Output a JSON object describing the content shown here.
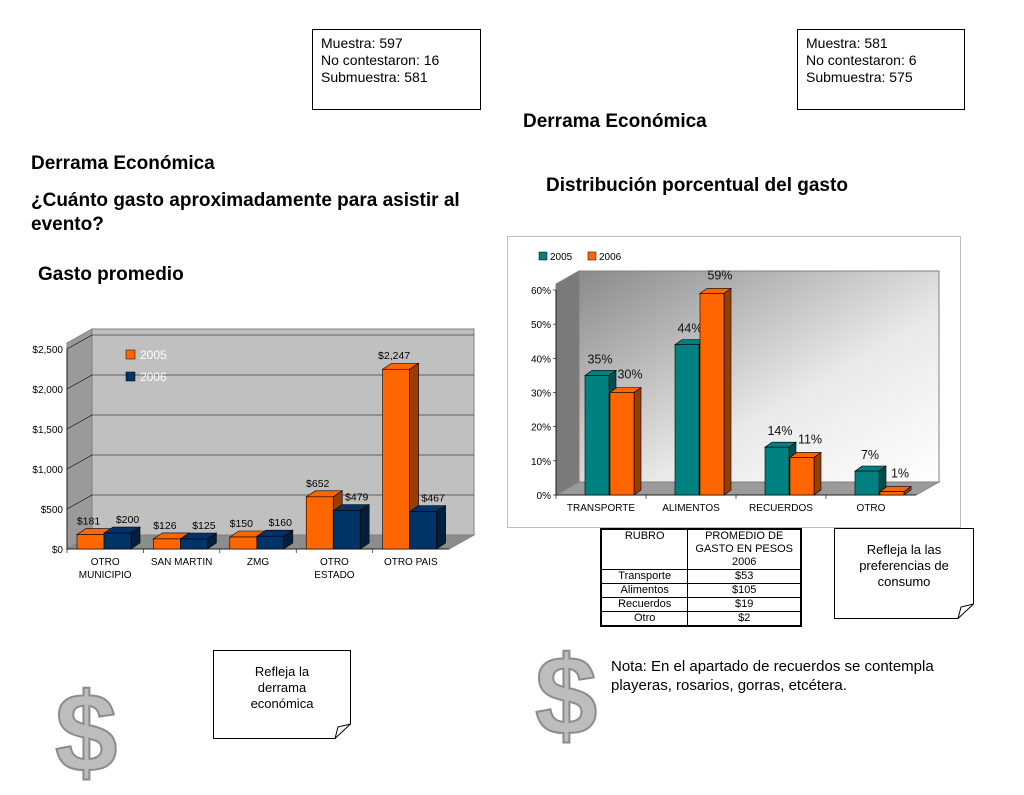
{
  "sample_left": {
    "line1": "Muestra: 597",
    "line2": "No contestaron: 16",
    "line3": "Submuestra: 581"
  },
  "sample_right": {
    "line1": "Muestra: 581",
    "line2": "No contestaron: 6",
    "line3": "Submuestra: 575"
  },
  "left": {
    "title": "Derrama Económica",
    "question": "¿Cuánto gasto aproximadamente para asistir al evento?",
    "subtitle": "Gasto promedio"
  },
  "right": {
    "title": "Derrama Económica",
    "subtitle": "Distribución porcentual del gasto"
  },
  "chart_data": [
    {
      "type": "bar",
      "title": "",
      "categories": [
        "OTRO MUNICIPIO",
        "SAN MARTIN",
        "ZMG",
        "OTRO ESTADO",
        "OTRO PAIS"
      ],
      "category_lines": [
        [
          "OTRO",
          "MUNICIPIO"
        ],
        [
          "SAN MARTIN"
        ],
        [
          "ZMG"
        ],
        [
          "OTRO",
          "ESTADO"
        ],
        [
          "OTRO PAIS"
        ]
      ],
      "series": [
        {
          "name": "2005",
          "values": [
            181,
            126,
            150,
            652,
            2247
          ],
          "labels": [
            "$181",
            "$126",
            "$150",
            "$652",
            "$2,247"
          ],
          "color": "#ff6600"
        },
        {
          "name": "2006",
          "values": [
            200,
            125,
            160,
            479,
            467
          ],
          "labels": [
            "$200",
            "$125",
            "$160",
            "$479",
            "$467"
          ],
          "color": "#003366"
        }
      ],
      "yticks": [
        "$0",
        "$500",
        "$1,000",
        "$1,500",
        "$2,000",
        "$2,500"
      ],
      "ylim": [
        0,
        2500
      ],
      "legend": "top-left",
      "grid": true
    },
    {
      "type": "bar",
      "title": "",
      "categories": [
        "TRANSPORTE",
        "ALIMENTOS",
        "RECUERDOS",
        "OTRO"
      ],
      "series": [
        {
          "name": "2005",
          "values": [
            35,
            44,
            14,
            7
          ],
          "labels": [
            "35%",
            "44%",
            "14%",
            "7%"
          ],
          "color": "#008080"
        },
        {
          "name": "2006",
          "values": [
            30,
            59,
            11,
            1
          ],
          "labels": [
            "30%",
            "59%",
            "11%",
            "1%"
          ],
          "color": "#ff6600"
        }
      ],
      "yticks": [
        "0%",
        "10%",
        "20%",
        "30%",
        "40%",
        "50%",
        "60%"
      ],
      "ylim": [
        0,
        60
      ],
      "legend": "top-left",
      "grid": false
    }
  ],
  "table": {
    "headers": [
      "RUBRO",
      "PROMEDIO DE GASTO EN PESOS 2006"
    ],
    "rows": [
      [
        "Transporte",
        "$53"
      ],
      [
        "Alimentos",
        "$105"
      ],
      [
        "Recuerdos",
        "$19"
      ],
      [
        "Otro",
        "$2"
      ]
    ]
  },
  "note_consumo": "Refleja la las preferencias de consumo",
  "note_derrama": "Refleja la derrama económica",
  "nota": "Nota: En el apartado de recuerdos se contempla playeras, rosarios, gorras, etcétera.",
  "dollar_symbol": "$"
}
